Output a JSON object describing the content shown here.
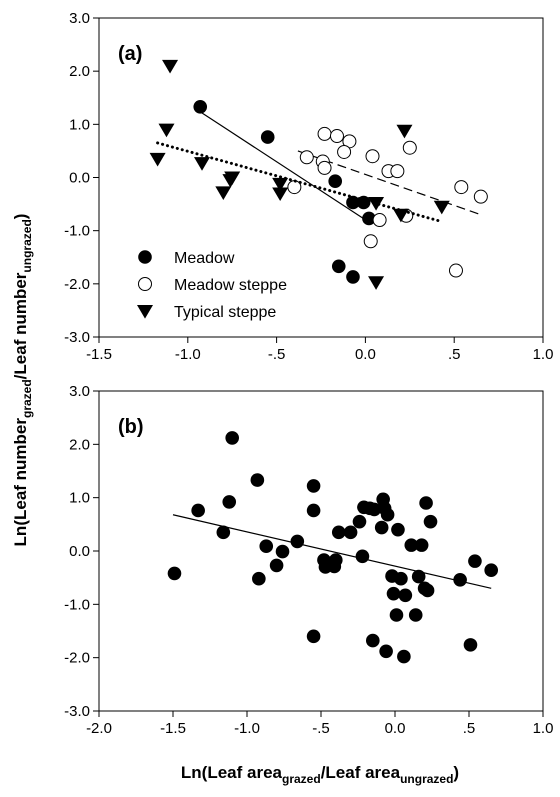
{
  "chart_data": [
    {
      "type": "scatter",
      "panel_label": "(a)",
      "xlim": [
        -1.5,
        1.0
      ],
      "ylim": [
        -3.0,
        3.0
      ],
      "x_ticks": [
        -1.5,
        -1.0,
        -0.5,
        0.0,
        0.5,
        1.0
      ],
      "x_tick_labels": [
        "-1.5",
        "-1.0",
        "-.5",
        "0.0",
        ".5",
        "1.0"
      ],
      "y_ticks": [
        -3.0,
        -2.0,
        -1.0,
        0.0,
        1.0,
        2.0,
        3.0
      ],
      "y_tick_labels": [
        "-3.0",
        "-2.0",
        "-1.0",
        "0.0",
        "1.0",
        "2.0",
        "3.0"
      ],
      "legend_position": "bottom-left",
      "series": [
        {
          "name": "Meadow",
          "marker": "filled-circle",
          "points": [
            [
              -0.93,
              1.33
            ],
            [
              -0.55,
              0.76
            ],
            [
              -0.17,
              -0.07
            ],
            [
              -0.07,
              -0.47
            ],
            [
              -0.01,
              -0.47
            ],
            [
              0.02,
              -0.77
            ],
            [
              -0.15,
              -1.67
            ],
            [
              -0.07,
              -1.87
            ]
          ],
          "fit": {
            "style": "solid",
            "from": [
              -0.95,
              1.28
            ],
            "to": [
              0.02,
              -0.84
            ]
          }
        },
        {
          "name": "Meadow steppe",
          "marker": "open-circle",
          "points": [
            [
              -0.23,
              0.82
            ],
            [
              -0.16,
              0.78
            ],
            [
              -0.09,
              0.68
            ],
            [
              -0.12,
              0.48
            ],
            [
              -0.33,
              0.38
            ],
            [
              -0.24,
              0.3
            ],
            [
              0.04,
              0.4
            ],
            [
              -0.23,
              0.18
            ],
            [
              0.13,
              0.12
            ],
            [
              0.18,
              0.12
            ],
            [
              0.25,
              0.56
            ],
            [
              -0.4,
              -0.18
            ],
            [
              0.08,
              -0.8
            ],
            [
              0.23,
              -0.72
            ],
            [
              0.03,
              -1.2
            ],
            [
              0.54,
              -0.18
            ],
            [
              0.65,
              -0.36
            ],
            [
              0.51,
              -1.75
            ]
          ],
          "fit": {
            "style": "dashed",
            "from": [
              -0.38,
              0.5
            ],
            "to": [
              0.65,
              -0.7
            ]
          }
        },
        {
          "name": "Typical steppe",
          "marker": "filled-triangle-down",
          "points": [
            [
              -1.1,
              2.1
            ],
            [
              -1.12,
              0.9
            ],
            [
              -1.17,
              0.35
            ],
            [
              -0.92,
              0.27
            ],
            [
              -0.75,
              0.0
            ],
            [
              -0.76,
              -0.05
            ],
            [
              -0.8,
              -0.28
            ],
            [
              -0.48,
              -0.12
            ],
            [
              -0.48,
              -0.3
            ],
            [
              0.06,
              -0.48
            ],
            [
              0.2,
              -0.7
            ],
            [
              0.22,
              0.88
            ],
            [
              0.43,
              -0.55
            ],
            [
              0.06,
              -1.97
            ]
          ],
          "fit": {
            "style": "dotted",
            "from": [
              -1.17,
              0.65
            ],
            "to": [
              0.42,
              -0.82
            ]
          }
        }
      ]
    },
    {
      "type": "scatter",
      "panel_label": "(b)",
      "xlabel": "Ln(Leaf areagrazed/Leaf areaungrazed)",
      "ylabel": "Ln(Leaf numbergrazed/Leaf numberungrazed)",
      "xlim": [
        -2.0,
        1.0
      ],
      "ylim": [
        -3.0,
        3.0
      ],
      "x_ticks": [
        -2.0,
        -1.5,
        -1.0,
        -0.5,
        0.0,
        0.5,
        1.0
      ],
      "x_tick_labels": [
        "-2.0",
        "-1.5",
        "-1.0",
        "-.5",
        "0.0",
        ".5",
        "1.0"
      ],
      "y_ticks": [
        -3.0,
        -2.0,
        -1.0,
        0.0,
        1.0,
        2.0,
        3.0
      ],
      "y_tick_labels": [
        "-3.0",
        "-2.0",
        "-1.0",
        "0.0",
        "1.0",
        "2.0",
        "3.0"
      ],
      "series": [
        {
          "points": [
            [
              -1.49,
              -0.42
            ],
            [
              -1.33,
              0.76
            ],
            [
              -1.1,
              2.12
            ],
            [
              -1.12,
              0.92
            ],
            [
              -1.16,
              0.35
            ],
            [
              -0.93,
              1.33
            ],
            [
              -0.92,
              -0.52
            ],
            [
              -0.87,
              0.09
            ],
            [
              -0.8,
              -0.27
            ],
            [
              -0.76,
              -0.01
            ],
            [
              -0.66,
              0.18
            ],
            [
              -0.55,
              1.22
            ],
            [
              -0.55,
              0.76
            ],
            [
              -0.55,
              -1.6
            ],
            [
              -0.48,
              -0.17
            ],
            [
              -0.47,
              -0.3
            ],
            [
              -0.41,
              -0.29
            ],
            [
              -0.4,
              -0.17
            ],
            [
              -0.38,
              0.35
            ],
            [
              -0.3,
              0.35
            ],
            [
              -0.24,
              0.55
            ],
            [
              -0.22,
              -0.1
            ],
            [
              -0.21,
              0.82
            ],
            [
              -0.17,
              0.8
            ],
            [
              -0.15,
              -1.68
            ],
            [
              -0.14,
              0.78
            ],
            [
              -0.09,
              0.44
            ],
            [
              -0.08,
              0.97
            ],
            [
              -0.07,
              0.8
            ],
            [
              -0.06,
              -1.88
            ],
            [
              -0.05,
              0.68
            ],
            [
              -0.02,
              -0.47
            ],
            [
              -0.01,
              -0.8
            ],
            [
              0.01,
              -1.2
            ],
            [
              0.02,
              0.4
            ],
            [
              0.04,
              -0.52
            ],
            [
              0.06,
              -1.98
            ],
            [
              0.07,
              -0.83
            ],
            [
              0.11,
              0.11
            ],
            [
              0.14,
              -1.2
            ],
            [
              0.16,
              -0.48
            ],
            [
              0.18,
              0.11
            ],
            [
              0.2,
              -0.7
            ],
            [
              0.21,
              0.9
            ],
            [
              0.22,
              -0.74
            ],
            [
              0.24,
              0.55
            ],
            [
              0.44,
              -0.54
            ],
            [
              0.51,
              -1.76
            ],
            [
              0.54,
              -0.19
            ],
            [
              0.65,
              -0.36
            ]
          ]
        }
      ],
      "fit": {
        "style": "solid",
        "from": [
          -1.5,
          0.68
        ],
        "to": [
          0.65,
          -0.7
        ]
      }
    }
  ],
  "labels": {
    "panel_a": "(a)",
    "panel_b": "(b)",
    "x_axis": {
      "main1": "Ln(Leaf area",
      "sub1": "grazed",
      "main2": "/Leaf area",
      "sub2": "ungrazed",
      "main3": ")"
    },
    "y_axis": {
      "main1": "Ln(Leaf number",
      "sub1": "grazed",
      "main2": "/Leaf number",
      "sub2": "ungrazed",
      "main3": ")"
    }
  }
}
